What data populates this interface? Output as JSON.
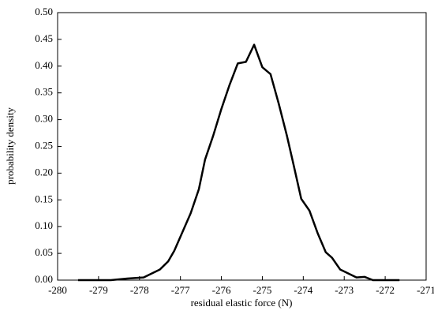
{
  "chart_data": {
    "type": "line",
    "x_label": "residual elastic force (N)",
    "y_label": "probability density",
    "x": [
      -279.5,
      -278.7,
      -278.3,
      -277.9,
      -277.5,
      -277.3,
      -277.15,
      -276.95,
      -276.75,
      -276.55,
      -276.4,
      -276.2,
      -276.0,
      -275.8,
      -275.6,
      -275.4,
      -275.2,
      -275.0,
      -274.8,
      -274.6,
      -274.4,
      -274.25,
      -274.05,
      -273.85,
      -273.65,
      -273.45,
      -273.3,
      -273.1,
      -272.7,
      -272.5,
      -272.3,
      -271.65
    ],
    "series": [
      {
        "color": "#000000",
        "values": [
          0,
          0,
          0.003,
          0.005,
          0.02,
          0.035,
          0.055,
          0.09,
          0.125,
          0.17,
          0.225,
          0.27,
          0.32,
          0.365,
          0.405,
          0.408,
          0.44,
          0.398,
          0.385,
          0.33,
          0.27,
          0.22,
          0.152,
          0.13,
          0.088,
          0.052,
          0.042,
          0.02,
          0.005,
          0.006,
          0,
          0
        ]
      }
    ],
    "xlim": [
      -280,
      -271
    ],
    "xticks": [
      -280,
      -279,
      -278,
      -277,
      -276,
      -275,
      -274,
      -273,
      -272,
      -271
    ],
    "ylim": [
      0,
      0.5
    ],
    "yticks": [
      {
        "value": 0,
        "label": "0.00"
      },
      {
        "value": 0.05,
        "label": "0.05"
      },
      {
        "value": 0.1,
        "label": "0.10"
      },
      {
        "value": 0.15,
        "label": "0.15"
      },
      {
        "value": 0.2,
        "label": "0.20"
      },
      {
        "value": 0.25,
        "label": "0.25"
      },
      {
        "value": 0.3,
        "label": "0.30"
      },
      {
        "value": 0.35,
        "label": "0.35"
      },
      {
        "value": 0.4,
        "label": "0.40"
      },
      {
        "value": 0.45,
        "label": "0.45"
      },
      {
        "value": 0.5,
        "label": "0.50"
      }
    ],
    "grid": false
  }
}
